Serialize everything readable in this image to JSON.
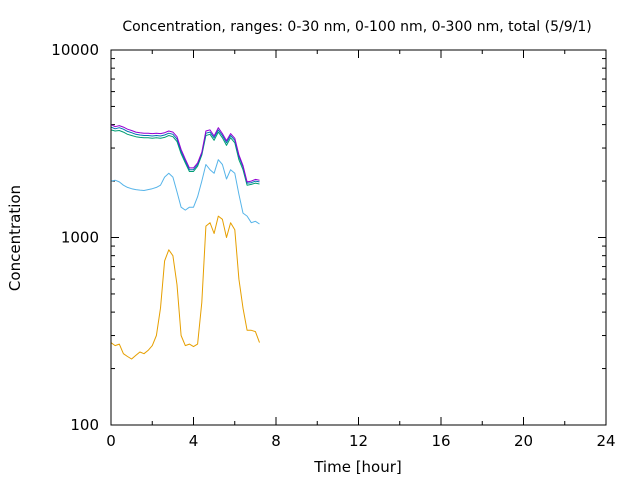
{
  "chart_data": {
    "type": "line",
    "title": "Concentration, ranges: 0-30 nm, 0-100 nm, 0-300 nm, total (5/9/1)",
    "xlabel": "Time [hour]",
    "ylabel": "Concentration",
    "xlim": [
      0,
      24
    ],
    "ylim": [
      100,
      10000
    ],
    "yscale": "log",
    "xticks": [
      "0",
      "4",
      "8",
      "12",
      "16",
      "20",
      "24"
    ],
    "yticks": [
      "100",
      "1000",
      "10000"
    ],
    "grid": false,
    "legend": "none",
    "series": [
      {
        "color": "#e69f00",
        "x": [
          0,
          0.2,
          0.4,
          0.6,
          0.8,
          1.0,
          1.2,
          1.4,
          1.6,
          1.8,
          2.0,
          2.2,
          2.4,
          2.6,
          2.8,
          3.0,
          3.2,
          3.4,
          3.6,
          3.8,
          4.0,
          4.2,
          4.4,
          4.6,
          4.8,
          5.0,
          5.2,
          5.4,
          5.6,
          5.8,
          6.0,
          6.2,
          6.4,
          6.6,
          6.8,
          7.0,
          7.2
        ],
        "y": [
          275,
          265,
          270,
          240,
          232,
          225,
          235,
          245,
          240,
          250,
          265,
          300,
          420,
          750,
          860,
          800,
          560,
          300,
          265,
          270,
          262,
          270,
          450,
          1150,
          1200,
          1050,
          1300,
          1250,
          1000,
          1200,
          1100,
          600,
          420,
          320,
          320,
          315,
          275
        ]
      },
      {
        "color": "#56b4e9",
        "x": [
          0,
          0.2,
          0.4,
          0.6,
          0.8,
          1.0,
          1.2,
          1.4,
          1.6,
          1.8,
          2.0,
          2.2,
          2.4,
          2.6,
          2.8,
          3.0,
          3.2,
          3.4,
          3.6,
          3.8,
          4.0,
          4.2,
          4.4,
          4.6,
          4.8,
          5.0,
          5.2,
          5.4,
          5.6,
          5.8,
          6.0,
          6.2,
          6.4,
          6.6,
          6.8,
          7.0,
          7.2
        ],
        "y": [
          2000,
          2020,
          1980,
          1900,
          1850,
          1820,
          1800,
          1790,
          1780,
          1800,
          1820,
          1850,
          1900,
          2100,
          2200,
          2100,
          1750,
          1450,
          1400,
          1450,
          1450,
          1650,
          2000,
          2450,
          2300,
          2200,
          2600,
          2450,
          2050,
          2300,
          2200,
          1700,
          1350,
          1300,
          1200,
          1220,
          1180
        ]
      },
      {
        "color": "#009e73",
        "x": [
          0,
          0.2,
          0.4,
          0.6,
          0.8,
          1.0,
          1.2,
          1.4,
          1.6,
          1.8,
          2.0,
          2.2,
          2.4,
          2.6,
          2.8,
          3.0,
          3.2,
          3.4,
          3.6,
          3.8,
          4.0,
          4.2,
          4.4,
          4.6,
          4.8,
          5.0,
          5.2,
          5.4,
          5.6,
          5.8,
          6.0,
          6.2,
          6.4,
          6.6,
          6.8,
          7.0,
          7.2
        ],
        "y": [
          3750,
          3700,
          3720,
          3650,
          3550,
          3500,
          3450,
          3420,
          3400,
          3400,
          3380,
          3400,
          3380,
          3420,
          3500,
          3450,
          3250,
          2800,
          2500,
          2250,
          2250,
          2400,
          2750,
          3500,
          3550,
          3300,
          3650,
          3400,
          3100,
          3400,
          3200,
          2600,
          2300,
          1900,
          1920,
          1950,
          1930
        ]
      },
      {
        "color": "#0072b2",
        "x": [
          0,
          0.2,
          0.4,
          0.6,
          0.8,
          1.0,
          1.2,
          1.4,
          1.6,
          1.8,
          2.0,
          2.2,
          2.4,
          2.6,
          2.8,
          3.0,
          3.2,
          3.4,
          3.6,
          3.8,
          4.0,
          4.2,
          4.4,
          4.6,
          4.8,
          5.0,
          5.2,
          5.4,
          5.6,
          5.8,
          6.0,
          6.2,
          6.4,
          6.6,
          6.8,
          7.0,
          7.2
        ],
        "y": [
          3880,
          3800,
          3850,
          3780,
          3680,
          3620,
          3550,
          3520,
          3500,
          3500,
          3480,
          3500,
          3480,
          3520,
          3600,
          3550,
          3350,
          2880,
          2560,
          2300,
          2300,
          2450,
          2800,
          3600,
          3650,
          3400,
          3750,
          3500,
          3200,
          3500,
          3300,
          2700,
          2380,
          1950,
          1960,
          2000,
          1980
        ]
      },
      {
        "color": "#9400d3",
        "x": [
          0,
          0.2,
          0.4,
          0.6,
          0.8,
          1.0,
          1.2,
          1.4,
          1.6,
          1.8,
          2.0,
          2.2,
          2.4,
          2.6,
          2.8,
          3.0,
          3.2,
          3.4,
          3.6,
          3.8,
          4.0,
          4.2,
          4.4,
          4.6,
          4.8,
          5.0,
          5.2,
          5.4,
          5.6,
          5.8,
          6.0,
          6.2,
          6.4,
          6.6,
          6.8,
          7.0,
          7.2
        ],
        "y": [
          4000,
          3900,
          3950,
          3880,
          3780,
          3720,
          3650,
          3620,
          3600,
          3600,
          3580,
          3600,
          3580,
          3620,
          3700,
          3650,
          3450,
          2950,
          2620,
          2350,
          2350,
          2500,
          2850,
          3700,
          3750,
          3480,
          3850,
          3580,
          3280,
          3580,
          3380,
          2760,
          2420,
          1980,
          2000,
          2040,
          2020
        ]
      }
    ]
  }
}
